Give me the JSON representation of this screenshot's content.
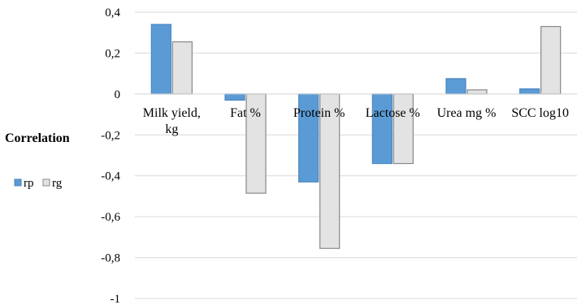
{
  "chart_data": {
    "type": "bar",
    "ylabel": "Correlation",
    "categories": [
      [
        "Milk yield,",
        "kg"
      ],
      [
        "Fat %"
      ],
      [
        "Protein %"
      ],
      [
        "Lactose %"
      ],
      [
        "Urea mg %"
      ],
      [
        "SCC log10"
      ]
    ],
    "series": [
      {
        "name": "rp",
        "values": [
          0.34,
          -0.03,
          -0.43,
          -0.34,
          0.075,
          0.025
        ]
      },
      {
        "name": "rg",
        "values": [
          0.255,
          -0.485,
          -0.755,
          -0.34,
          0.02,
          0.33
        ]
      }
    ],
    "ylim": [
      -1,
      0.4
    ],
    "yticks": [
      0.4,
      0.2,
      0,
      -0.2,
      -0.4,
      -0.6,
      -0.8,
      -1
    ],
    "ytick_labels": [
      "0,4",
      "0,2",
      "0",
      "-0,2",
      "-0,4",
      "-0,6",
      "-0,8",
      "-1"
    ],
    "grid": true,
    "legend": "left",
    "colors": {
      "rp_fill": "#5b9bd5",
      "rp_stroke": "#4a86c0",
      "rg_fill": "#e3e3e3",
      "rg_stroke": "#888888",
      "grid": "#d9d9d9"
    }
  }
}
